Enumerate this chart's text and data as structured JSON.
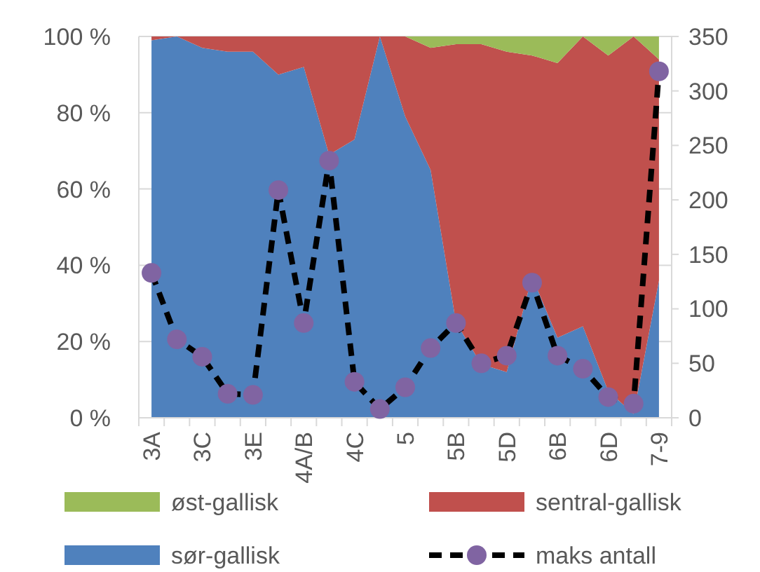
{
  "chart_data": {
    "type": "area",
    "stacked": true,
    "categories": [
      "3A",
      null,
      "3C",
      null,
      "3E",
      null,
      "4A/B",
      null,
      "4C",
      null,
      "5",
      null,
      "5B",
      null,
      "5D",
      null,
      "6B",
      null,
      "6D",
      null,
      "7-9"
    ],
    "ylim": [
      0,
      100
    ],
    "yticks": [
      {
        "value": 0,
        "label": "0 %"
      },
      {
        "value": 20,
        "label": "20 %"
      },
      {
        "value": 40,
        "label": "40 %"
      },
      {
        "value": 60,
        "label": "60 %"
      },
      {
        "value": 80,
        "label": "80 %"
      },
      {
        "value": 100,
        "label": "100 %"
      }
    ],
    "y2lim": [
      0,
      350
    ],
    "y2ticks": [
      0,
      50,
      100,
      150,
      200,
      250,
      300,
      350
    ],
    "grid": "y",
    "legend": "bottom",
    "series": [
      {
        "name": "sør-gallisk",
        "color": "#4f81bd",
        "values": [
          99,
          100,
          97,
          96,
          96,
          90,
          92,
          69,
          73,
          100,
          79,
          65,
          25,
          14,
          12,
          37,
          21,
          24,
          7,
          1,
          36
        ]
      },
      {
        "name": "sentral-gallisk",
        "color": "#c0504d",
        "values": [
          1,
          0,
          3,
          4,
          4,
          10,
          8,
          31,
          27,
          0,
          21,
          32,
          73,
          84,
          84,
          58,
          72,
          76,
          88,
          99,
          58
        ]
      },
      {
        "name": "øst-gallisk",
        "color": "#9bbb59",
        "values": [
          0,
          0,
          0,
          0,
          0,
          0,
          0,
          0,
          0,
          0,
          0,
          3,
          2,
          2,
          4,
          5,
          7,
          0,
          5,
          0,
          6
        ]
      },
      {
        "name": "maks antall",
        "type": "line",
        "axis": "y2",
        "color": "#8064a2",
        "marker": "circle",
        "line_style": "dashed",
        "values": [
          133,
          72,
          56,
          22,
          21,
          209,
          87,
          236,
          33,
          8,
          28,
          64,
          87,
          50,
          57,
          124,
          57,
          45,
          19,
          13,
          318
        ]
      }
    ]
  }
}
